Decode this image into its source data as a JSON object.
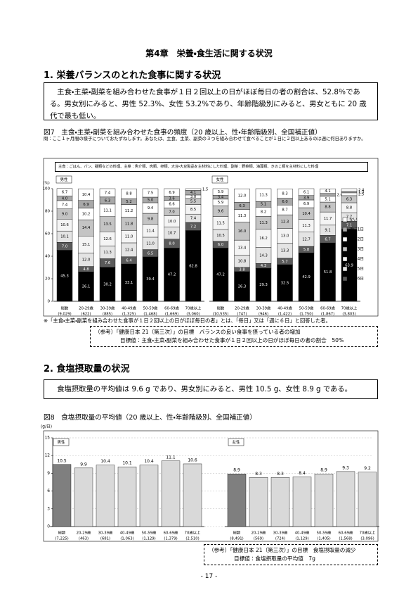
{
  "document": {
    "chapter": "第4章　栄養・食生活に関する状況",
    "section1": "1. 栄養バランスのとれた食事に関する状況",
    "summary1": "主食・主菜・副菜を組み合わせた食事が１日２回以上の日がほぼ毎日の者の割合は、52.8％である。男女別にみると、男性 52.3%、女性 53.2%であり、年齢階級別にみると、男女ともに 20 歳代で最も低い。",
    "question": "問：ここ１ヶ月間の様子についておたずねします。あなたは、主食、主菜、副菜の３つを組み合わせて食べることが１日に２回以上あるのは週に何日ありますか。",
    "definition": "主食：ごはん、パン、麺類などの料理、主菜：魚介類、肉類、卵類、大豆・大豆製品を主材料にした料理、副菜：野菜類、海藻類、きのこ類を主材料にした料理",
    "footnote": "※「主食・主菜・副菜を組み合わせた食事が１日２回以上の日がほぼ毎日の者」とは、「毎日」又は「週に６日」と回答した者。",
    "reference1": [
      "（参考）「健康日本 21（第三次）」の目標　バランスの良い食事を摂っている者の増加",
      "目標値：主食・主菜・副菜を組み合わせた食事が１日２回以上の日がほぼ毎日の者の割合　50%"
    ],
    "section2": "2. 食塩摂取量の状況",
    "summary2": "食塩摂取量の平均値は 9.6 g であり、男女別にみると、男性 10.5 g、女性 8.9 g である。",
    "reference2": [
      "（参考）「健康日本 21（第三次）」の目標　食塩摂取量の減少",
      "目標値：食塩摂取量の平均値　7g"
    ],
    "page_number": "- 17 -"
  },
  "chart_data": [
    {
      "type": "stacked_bar",
      "title": "図7　主食・主菜・副菜を組み合わせた食事の頻度（20 歳以上、性・年齢階級別、全国補正値）",
      "ylabel": "(%)",
      "ylim": [
        0,
        100
      ],
      "yticks": [
        0,
        20,
        40,
        60,
        80,
        100
      ],
      "categories": [
        "総数",
        "20-29歳",
        "30-39歳",
        "40-49歳",
        "50-59歳",
        "60-69歳",
        "70歳以上"
      ],
      "series": [
        {
          "name": "毎日",
          "color": "#000000"
        },
        {
          "name": "週に6日",
          "color": "#5a5a5a"
        },
        {
          "name": "週に5日",
          "color": "#e4e4e4"
        },
        {
          "name": "週に4日",
          "color": "#f4f4f4"
        },
        {
          "name": "週に3日",
          "color": "#c4c4c4"
        },
        {
          "name": "週に2日",
          "color": "#ffffff"
        },
        {
          "name": "週に1日",
          "color": "#a8a8a8"
        },
        {
          "name": "ない",
          "color": "#ffffff"
        }
      ],
      "panels": [
        {
          "label": "男性",
          "n_labels": [
            "(9,029)",
            "(622)",
            "(885)",
            "(1,325)",
            "(1,468)",
            "(1,669)",
            "(3,060)"
          ],
          "values": [
            [
              45.3,
              26.1,
              30.2,
              33.1,
              39.4,
              47.2,
              62.8
            ],
            [
              7.0,
              4.8,
              7.6,
              6.4,
              6.5,
              8.0,
              7.2
            ],
            [
              10.1,
              12.0,
              11.3,
              12.4,
              11.0,
              10.7,
              7.4
            ],
            [
              10.6,
              15.1,
              12.6,
              11.0,
              11.4,
              10.0,
              8.5
            ],
            [
              9.0,
              14.4,
              13.5,
              11.8,
              9.8,
              7.0,
              5.5
            ],
            [
              7.4,
              10.2,
              11.1,
              11.2,
              9.4,
              6.6,
              3.0
            ],
            [
              4.0,
              6.9,
              6.3,
              5.2,
              5.0,
              3.6,
              4.1
            ],
            [
              6.7,
              10.4,
              7.4,
              8.8,
              7.5,
              6.9,
              1.5
            ]
          ],
          "value_labels": [
            [
              "45.3",
              "26.1",
              "30.2",
              "33.1",
              "39.4",
              "47.2",
              "62.8"
            ],
            [
              "7.0",
              "4.8",
              "7.6",
              "6.4",
              "6.5",
              "8.0",
              "7.2"
            ],
            [
              "10.1",
              "12.0",
              "11.3",
              "12.4",
              "11.0",
              "10.7",
              "7.4"
            ],
            [
              "10.6",
              "15.1",
              "12.6",
              "11.0",
              "11.4",
              "10.0",
              "8.5"
            ],
            [
              "9.0",
              "14.4",
              "13.5",
              "11.8",
              "9.8",
              "7.0",
              "5.5"
            ],
            [
              "7.4",
              "10.2",
              "11.1",
              "11.2",
              "9.4",
              "6.6",
              "3.0"
            ],
            [
              "4.0",
              "6.9",
              "6.3",
              "5.2",
              "5.0",
              "3.6",
              "4.1"
            ],
            [
              "6.7",
              "10.4",
              "7.4",
              "8.8",
              "7.5",
              "6.9",
              "1.5"
            ]
          ]
        },
        {
          "label": "女性",
          "n_labels": [
            "(10,535)",
            "(747)",
            "(946)",
            "(1,422)",
            "(1,750)",
            "(1,867)",
            "(3,803)"
          ],
          "values": [
            [
              47.2,
              26.3,
              29.3,
              32.5,
              42.9,
              51.8,
              63.9
            ],
            [
              6.0,
              3.8,
              4.3,
              5.7,
              5.8,
              6.7,
              7.1
            ],
            [
              10.5,
              10.8,
              14.3,
              13.3,
              12.7,
              9.1,
              7.7
            ],
            [
              11.5,
              13.4,
              16.2,
              13.0,
              11.3,
              11.7,
              8.8
            ],
            [
              9.6,
              16.0,
              11.3,
              12.3,
              10.4,
              8.8,
              6.3
            ],
            [
              5.9,
              11.3,
              8.2,
              8.7,
              6.9,
              5.1,
              2.5
            ],
            [
              3.4,
              6.3,
              5.1,
              6.0,
              3.9,
              2.6,
              1.3
            ],
            [
              5.9,
              12.0,
              11.3,
              8.3,
              6.1,
              4.1,
              2.4
            ]
          ],
          "value_labels": [
            [
              "47.2",
              "26.3",
              "29.3",
              "32.5",
              "42.9",
              "51.8",
              "63.9"
            ],
            [
              "6.0",
              "3.8",
              "4.3",
              "5.7",
              "5.8",
              "6.7",
              "7.1"
            ],
            [
              "10.5",
              "10.8",
              "14.3",
              "13.3",
              "12.7",
              "9.1",
              "7.7"
            ],
            [
              "11.5",
              "13.4",
              "16.2",
              "13.0",
              "11.3",
              "11.7",
              "8.8"
            ],
            [
              "9.6",
              "16.0",
              "11.3",
              "12.3",
              "10.4",
              "8.8",
              "6.3"
            ],
            [
              "5.9",
              "11.3",
              "8.2",
              "8.7",
              "6.9",
              "5.1",
              "2.5"
            ],
            [
              "3.4",
              "6.3",
              "5.1",
              "6.0",
              "3.9",
              "2.6",
              "1.3"
            ],
            [
              "5.9",
              "12.0",
              "11.3",
              "8.3",
              "6.1",
              "4.1",
              "2.4"
            ]
          ]
        }
      ]
    },
    {
      "type": "bar",
      "title": "図8　食塩摂取量の平均値（20 歳以上、性・年齢階級別、全国補正値）",
      "ylabel": "(g/日)",
      "ylim": [
        0,
        15
      ],
      "yticks": [
        0,
        3,
        6,
        9,
        12,
        15
      ],
      "grid": true,
      "color": "#d9d9d9",
      "total_color": "#7f7f7f",
      "categories": [
        "総数",
        "20-29歳",
        "30-39歳",
        "40-49歳",
        "50-59歳",
        "60-69歳",
        "70歳以上"
      ],
      "panels": [
        {
          "label": "男性",
          "n_labels": [
            "(7,225)",
            "(463)",
            "(681)",
            "(1,063)",
            "(1,129)",
            "(1,379)",
            "(2,510)"
          ],
          "values": [
            10.5,
            9.9,
            10.4,
            10.1,
            10.4,
            11.1,
            10.6
          ]
        },
        {
          "label": "女性",
          "n_labels": [
            "(8,491)",
            "(569)",
            "(724)",
            "(1,129)",
            "(1,405)",
            "(1,568)",
            "(3,096)"
          ],
          "values": [
            8.9,
            8.3,
            8.3,
            8.4,
            8.9,
            9.3,
            9.2
          ]
        }
      ]
    }
  ]
}
